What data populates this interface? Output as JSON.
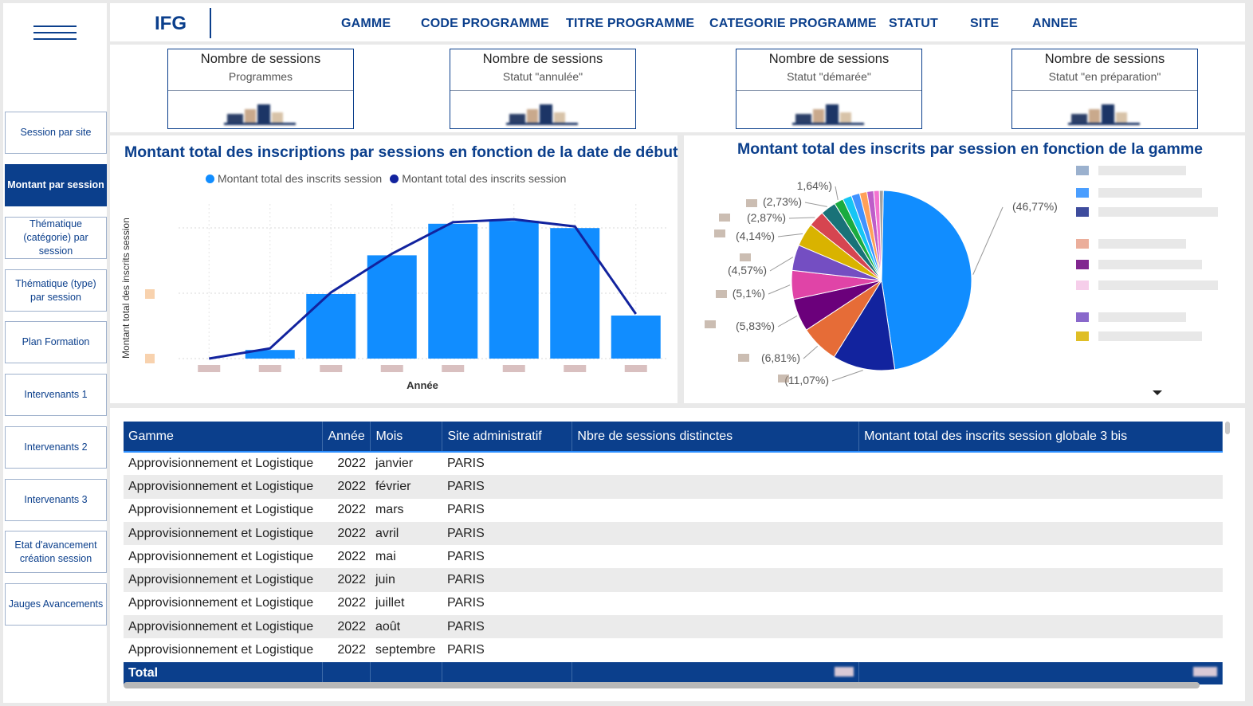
{
  "app": {
    "logo": "IFG"
  },
  "filters": [
    "GAMME",
    "CODE PROGRAMME",
    "TITRE PROGRAMME",
    "CATEGORIE PROGRAMME",
    "STATUT",
    "SITE",
    "ANNEE"
  ],
  "nav": [
    {
      "label": "Session par site",
      "active": false
    },
    {
      "label": "Montant par session",
      "active": true
    },
    {
      "label": "Thématique (catégorie) par session",
      "active": false
    },
    {
      "label": "Thématique (type) par session",
      "active": false
    },
    {
      "label": "Plan Formation",
      "active": false
    },
    {
      "label": "Intervenants 1",
      "active": false
    },
    {
      "label": "Intervenants 2",
      "active": false
    },
    {
      "label": "Intervenants 3",
      "active": false
    },
    {
      "label": "Etat d'avancement création session",
      "active": false
    },
    {
      "label": "Jauges Avancements",
      "active": false
    }
  ],
  "kpis": [
    {
      "title": "Nombre de sessions",
      "subtitle": "Programmes"
    },
    {
      "title": "Nombre de sessions",
      "subtitle": "Statut \"annulée\""
    },
    {
      "title": "Nombre de sessions",
      "subtitle": "Statut \"démarée\""
    },
    {
      "title": "Nombre de sessions",
      "subtitle": "Statut \"en préparation\""
    }
  ],
  "bar_panel": {
    "title": "Montant total des inscriptions par sessions en fonction de la date de début",
    "legend": [
      "Montant total des inscrits session",
      "Montant total des inscrits session"
    ]
  },
  "pie_panel": {
    "title": "Montant total des inscrits par session en fonction de la gamme"
  },
  "colors": {
    "brand": "#0b3f8c",
    "bar": "#118dff",
    "line": "#12239e"
  },
  "chart_data": [
    {
      "type": "bar",
      "title": "Montant total des inscriptions par sessions en fonction de la date de début",
      "xlabel": "Année",
      "ylabel": "Montant total des inscrits session",
      "categories": [
        "",
        "",
        "",
        "",
        "",
        "",
        "",
        ""
      ],
      "series": [
        {
          "name": "Montant total des inscrits session",
          "kind": "bar",
          "values": [
            0,
            6,
            45,
            72,
            94,
            96,
            91,
            30
          ]
        },
        {
          "name": "Montant total des inscrits session",
          "kind": "line",
          "values": [
            0,
            6,
            45,
            72,
            94,
            96,
            91,
            30
          ]
        }
      ],
      "ylim": [
        0,
        100
      ],
      "grid": true,
      "legend": "top"
    },
    {
      "type": "pie",
      "title": "Montant total des inscrits par session en fonction de la gamme",
      "labels": [
        "(46,77%)",
        "(11,07%)",
        "(6,81%)",
        "(5,83%)",
        "(5,1%)",
        "(4,57%)",
        "(4,14%)",
        "(2,87%)",
        "(2,73%)",
        "1,64%)",
        "",
        "",
        "",
        "",
        "",
        ""
      ],
      "values": [
        46.77,
        11.07,
        6.81,
        5.83,
        5.1,
        4.57,
        4.14,
        2.87,
        2.73,
        1.64,
        1.6,
        1.5,
        1.3,
        1.2,
        1.0,
        0.7
      ],
      "colors": [
        "#118dff",
        "#12239e",
        "#e66c37",
        "#6b007b",
        "#e044a7",
        "#744ec2",
        "#d9b300",
        "#d64550",
        "#197278",
        "#1aab40",
        "#15c6f4",
        "#4092ff",
        "#ffa058",
        "#be5dc9",
        "#f472d0",
        "#a1a1a1"
      ],
      "legend": "right"
    }
  ],
  "table": {
    "columns": [
      "Gamme",
      "Année",
      "Mois",
      "Site administratif",
      "Nbre de sessions distinctes",
      "Montant total des inscrits session globale 3 bis"
    ],
    "rows": [
      [
        "Approvisionnement et Logistique",
        "2022",
        "janvier",
        "PARIS",
        "",
        ""
      ],
      [
        "Approvisionnement et Logistique",
        "2022",
        "février",
        "PARIS",
        "",
        ""
      ],
      [
        "Approvisionnement et Logistique",
        "2022",
        "mars",
        "PARIS",
        "",
        ""
      ],
      [
        "Approvisionnement et Logistique",
        "2022",
        "avril",
        "PARIS",
        "",
        ""
      ],
      [
        "Approvisionnement et Logistique",
        "2022",
        "mai",
        "PARIS",
        "",
        ""
      ],
      [
        "Approvisionnement et Logistique",
        "2022",
        "juin",
        "PARIS",
        "",
        ""
      ],
      [
        "Approvisionnement et Logistique",
        "2022",
        "juillet",
        "PARIS",
        "",
        ""
      ],
      [
        "Approvisionnement et Logistique",
        "2022",
        "août",
        "PARIS",
        "",
        ""
      ],
      [
        "Approvisionnement et Logistique",
        "2022",
        "septembre",
        "PARIS",
        "",
        ""
      ]
    ],
    "total_label": "Total"
  }
}
